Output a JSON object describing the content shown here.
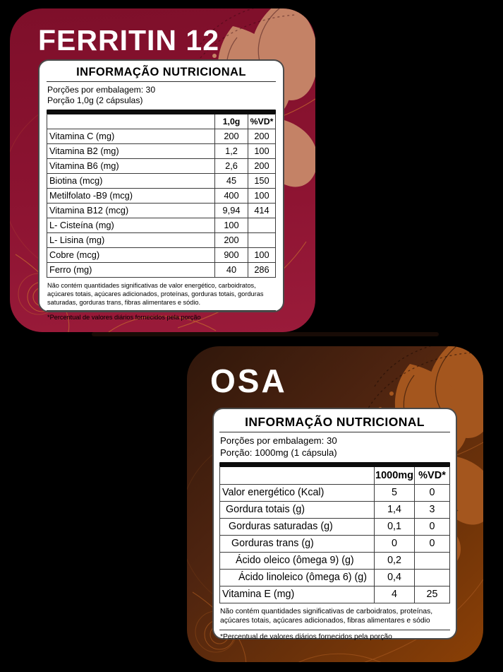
{
  "page": {
    "background_color": "#000000"
  },
  "cards": {
    "ferritin": {
      "title": "FERRITIN 12",
      "colors": {
        "background_top": "#7E0F2A",
        "background_bottom": "#9A1B3A",
        "pattern": "#C48266",
        "swirl_lines": "#C2652F",
        "title_text": "#FFFFFF",
        "panel_border": "#4A4A4A"
      },
      "nutrition": {
        "header": "INFORMAÇÃO NUTRICIONAL",
        "servings_per_pack": "Porções por embalagem: 30",
        "serving_size": "Porção 1,0g (2 cápsulas)",
        "columns": {
          "amount": "1,0g",
          "dv": "%VD*"
        },
        "rows": [
          {
            "name": "Vitamina C (mg)",
            "amount": "200",
            "dv": "200",
            "indent": 0
          },
          {
            "name": "Vitamina B2 (mg)",
            "amount": "1,2",
            "dv": "100",
            "indent": 0
          },
          {
            "name": "Vitamina B6 (mg)",
            "amount": "2,6",
            "dv": "200",
            "indent": 0
          },
          {
            "name": "Biotina (mcg)",
            "amount": "45",
            "dv": "150",
            "indent": 0
          },
          {
            "name": "Metilfolato -B9 (mcg)",
            "amount": "400",
            "dv": "100",
            "indent": 0
          },
          {
            "name": "Vitamina B12 (mcg)",
            "amount": "9,94",
            "dv": "414",
            "indent": 0
          },
          {
            "name": "L- Cisteína (mg)",
            "amount": "100",
            "dv": "",
            "indent": 0
          },
          {
            "name": "L- Lisina (mg)",
            "amount": "200",
            "dv": "",
            "indent": 0
          },
          {
            "name": "Cobre (mcg)",
            "amount": "900",
            "dv": "100",
            "indent": 0
          },
          {
            "name": "Ferro (mg)",
            "amount": "40",
            "dv": "286",
            "indent": 0
          }
        ],
        "no_significant_note": "Não contém quantidades significativas de valor energético, carboidratos, açúcares totais, açúcares adicionados, proteínas, gorduras totais, gorduras saturadas, gorduras trans, fibras alimentares e sódio.",
        "dv_footnote": "*Percentual de valores diários fornecidos pela porção"
      }
    },
    "osa": {
      "title": "OSA",
      "colors": {
        "background_top_left": "#30170B",
        "background_bottom_right": "#8B4006",
        "pattern": "#A4561E",
        "swirl_lines": "#A4561E",
        "title_text": "#FFFFFF",
        "panel_border": "#4A4A4A"
      },
      "nutrition": {
        "header": "INFORMAÇÃO NUTRICIONAL",
        "servings_per_pack": "Porções por embalagem: 30",
        "serving_size": "Porção: 1000mg (1 cápsula)",
        "columns": {
          "amount": "1000mg",
          "dv": "%VD*"
        },
        "rows": [
          {
            "name": "Valor energético (Kcal)",
            "amount": "5",
            "dv": "0",
            "indent": 0
          },
          {
            "name": "Gordura totais (g)",
            "amount": "1,4",
            "dv": "3",
            "indent": 5
          },
          {
            "name": "Gorduras saturadas (g)",
            "amount": "0,1",
            "dv": "0",
            "indent": 9
          },
          {
            "name": "Gorduras trans (g)",
            "amount": "0",
            "dv": "0",
            "indent": 13
          },
          {
            "name": "Ácido oleico (ômega 9) (g)",
            "amount": "0,2",
            "dv": "",
            "indent": 19
          },
          {
            "name": "Ácido linoleico (ômega 6) (g)",
            "amount": "0,4",
            "dv": "",
            "indent": 23
          },
          {
            "name": "Vitamina E (mg)",
            "amount": "4",
            "dv": "25",
            "indent": 0
          }
        ],
        "no_significant_note": "Não contém quantidades significativas de carboidratos, proteínas, açúcares totais, açúcares adicionados, fibras alimentares e sódio",
        "dv_footnote": "*Percentual de valores diários fornecidos pela porção"
      }
    }
  }
}
